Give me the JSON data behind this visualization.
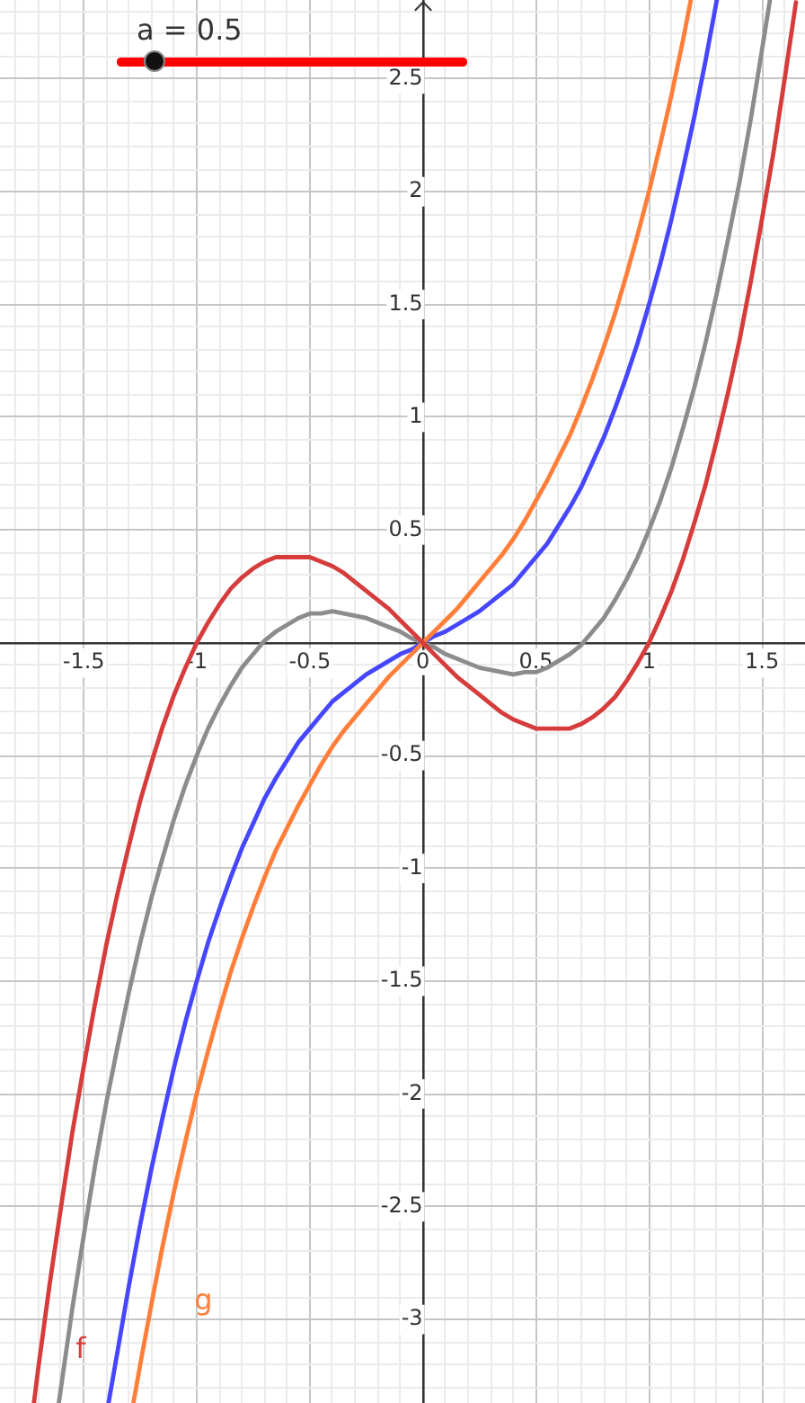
{
  "chart_data": {
    "type": "line",
    "annotations": [
      "a = 0.5"
    ],
    "xlim": [
      -1.87,
      1.69
    ],
    "ylim": [
      -3.37,
      2.85
    ],
    "xticks": [
      {
        "value": -1.8,
        "label": null
      },
      {
        "value": -1.7,
        "label": null
      },
      {
        "value": -1.6,
        "label": null
      },
      -1.5,
      {
        "value": -1.4,
        "label": null
      },
      {
        "value": -1.3,
        "label": null
      },
      {
        "value": -1.2,
        "label": null
      },
      {
        "value": -1.1,
        "label": null
      },
      -1,
      {
        "value": -0.9,
        "label": null
      },
      {
        "value": -0.8,
        "label": null
      },
      {
        "value": -0.7,
        "label": null
      },
      {
        "value": -0.6,
        "label": null
      },
      -0.5,
      {
        "value": -0.4,
        "label": null
      },
      {
        "value": -0.3,
        "label": null
      },
      {
        "value": -0.2,
        "label": null
      },
      {
        "value": -0.1,
        "label": null
      },
      0,
      {
        "value": 0.1,
        "label": null
      },
      {
        "value": 0.2,
        "label": null
      },
      {
        "value": 0.3,
        "label": null
      },
      {
        "value": 0.4,
        "label": null
      },
      0.5,
      {
        "value": 0.6,
        "label": null
      },
      {
        "value": 0.7,
        "label": null
      },
      {
        "value": 0.8,
        "label": null
      },
      {
        "value": 0.9,
        "label": null
      },
      1,
      {
        "value": 1.1,
        "label": null
      },
      {
        "value": 1.2,
        "label": null
      },
      {
        "value": 1.3,
        "label": null
      },
      {
        "value": 1.4,
        "label": null
      },
      1.5,
      {
        "value": 1.6,
        "label": null
      }
    ],
    "yticks": [
      {
        "value": -3.3,
        "label": null
      },
      {
        "value": -3.2,
        "label": null
      },
      {
        "value": -3.1,
        "label": null
      },
      -3,
      {
        "value": -2.9,
        "label": null
      },
      {
        "value": -2.8,
        "label": null
      },
      {
        "value": -2.7,
        "label": null
      },
      {
        "value": -2.6,
        "label": null
      },
      -2.5,
      {
        "value": -2.4,
        "label": null
      },
      {
        "value": -2.3,
        "label": null
      },
      {
        "value": -2.2,
        "label": null
      },
      {
        "value": -2.1,
        "label": null
      },
      -2,
      {
        "value": -1.9,
        "label": null
      },
      {
        "value": -1.8,
        "label": null
      },
      {
        "value": -1.7,
        "label": null
      },
      {
        "value": -1.6,
        "label": null
      },
      -1.5,
      {
        "value": -1.4,
        "label": null
      },
      {
        "value": -1.3,
        "label": null
      },
      {
        "value": -1.2,
        "label": null
      },
      {
        "value": -1.1,
        "label": null
      },
      -1,
      {
        "value": -0.9,
        "label": null
      },
      {
        "value": -0.8,
        "label": null
      },
      {
        "value": -0.7,
        "label": null
      },
      {
        "value": -0.6,
        "label": null
      },
      -0.5,
      {
        "value": -0.4,
        "label": null
      },
      {
        "value": -0.3,
        "label": null
      },
      {
        "value": -0.2,
        "label": null
      },
      {
        "value": -0.1,
        "label": null
      },
      {
        "value": 0,
        "label": null
      },
      {
        "value": 0.1,
        "label": null
      },
      {
        "value": 0.2,
        "label": null
      },
      {
        "value": 0.3,
        "label": null
      },
      {
        "value": 0.4,
        "label": null
      },
      0.5,
      {
        "value": 0.6,
        "label": null
      },
      {
        "value": 0.7,
        "label": null
      },
      {
        "value": 0.8,
        "label": null
      },
      {
        "value": 0.9,
        "label": null
      },
      1,
      {
        "value": 1.1,
        "label": null
      },
      {
        "value": 1.2,
        "label": null
      },
      {
        "value": 1.3,
        "label": null
      },
      {
        "value": 1.4,
        "label": null
      },
      1.5,
      {
        "value": 1.6,
        "label": null
      },
      {
        "value": 1.7,
        "label": null
      },
      {
        "value": 1.8,
        "label": null
      },
      {
        "value": 1.9,
        "label": null
      },
      2,
      {
        "value": 2.1,
        "label": null
      },
      {
        "value": 2.2,
        "label": null
      },
      {
        "value": 2.3,
        "label": null
      },
      {
        "value": 2.4,
        "label": null
      },
      2.5,
      {
        "value": 2.6,
        "label": null
      },
      {
        "value": 2.7,
        "label": null
      },
      {
        "value": 2.8,
        "label": null
      }
    ],
    "grid": true,
    "marker": "none",
    "line_style": "solid",
    "series": [
      {
        "name": "f",
        "color": "#d63c3c",
        "x": [
          -1.72,
          -1.7,
          -1.65,
          -1.6,
          -1.55,
          -1.5,
          -1.45,
          -1.4,
          -1.35,
          -1.3,
          -1.25,
          -1.2,
          -1.15,
          -1.1,
          -1.05,
          -1,
          -0.95,
          -0.9,
          -0.85,
          -0.8,
          -0.75,
          -0.7,
          -0.65,
          -0.6,
          -0.55,
          -0.5,
          -0.45,
          -0.4,
          -0.35,
          -0.3,
          -0.25,
          -0.2,
          -0.15,
          -0.1,
          -0.05,
          0,
          0.05,
          0.1,
          0.15,
          0.2,
          0.25,
          0.3,
          0.35,
          0.4,
          0.45,
          0.5,
          0.55,
          0.6,
          0.65,
          0.7,
          0.75,
          0.8,
          0.85,
          0.9,
          0.95,
          1,
          1.05,
          1.1,
          1.15,
          1.2,
          1.25,
          1.3,
          1.35,
          1.4,
          1.45,
          1.5,
          1.55,
          1.6,
          1.65
        ],
        "values": [
          -3.37,
          -3.21,
          -2.84,
          -2.5,
          -2.17,
          -1.88,
          -1.6,
          -1.34,
          -1.11,
          -0.9,
          -0.7,
          -0.53,
          -0.37,
          -0.23,
          -0.11,
          0,
          0.09,
          0.17,
          0.24,
          0.29,
          0.33,
          0.36,
          0.38,
          0.38,
          0.38,
          0.38,
          0.36,
          0.34,
          0.31,
          0.27,
          0.23,
          0.19,
          0.15,
          0.1,
          0.05,
          0,
          -0.05,
          -0.1,
          -0.15,
          -0.19,
          -0.23,
          -0.27,
          -0.31,
          -0.34,
          -0.36,
          -0.38,
          -0.38,
          -0.38,
          -0.38,
          -0.36,
          -0.33,
          -0.29,
          -0.24,
          -0.17,
          -0.09,
          0,
          0.11,
          0.23,
          0.37,
          0.53,
          0.7,
          0.9,
          1.11,
          1.34,
          1.6,
          1.88,
          2.17,
          2.5,
          2.84
        ]
      },
      {
        "name": "g",
        "color": "#ff7f3a",
        "x": [
          -1.28,
          -1.25,
          -1.2,
          -1.15,
          -1.1,
          -1.05,
          -1,
          -0.95,
          -0.9,
          -0.85,
          -0.8,
          -0.75,
          -0.7,
          -0.65,
          -0.6,
          -0.55,
          -0.5,
          -0.45,
          -0.4,
          -0.35,
          -0.3,
          -0.25,
          -0.2,
          -0.15,
          -0.1,
          -0.05,
          0,
          0.05,
          0.1,
          0.15,
          0.2,
          0.25,
          0.3,
          0.35,
          0.4,
          0.45,
          0.5,
          0.55,
          0.6,
          0.65,
          0.7,
          0.75,
          0.8,
          0.85,
          0.9,
          0.95,
          1,
          1.05,
          1.1,
          1.15,
          1.185
        ],
        "values": [
          -3.37,
          -3.2,
          -2.93,
          -2.67,
          -2.43,
          -2.21,
          -2,
          -1.81,
          -1.63,
          -1.46,
          -1.31,
          -1.17,
          -1.04,
          -0.92,
          -0.82,
          -0.72,
          -0.63,
          -0.54,
          -0.46,
          -0.39,
          -0.33,
          -0.27,
          -0.21,
          -0.15,
          -0.1,
          -0.05,
          0,
          0.05,
          0.1,
          0.15,
          0.21,
          0.27,
          0.33,
          0.39,
          0.46,
          0.54,
          0.63,
          0.72,
          0.82,
          0.92,
          1.04,
          1.17,
          1.31,
          1.46,
          1.63,
          1.81,
          2,
          2.21,
          2.43,
          2.67,
          2.85
        ]
      },
      {
        "color": "#4646ff",
        "x": [
          -1.39,
          -1.35,
          -1.3,
          -1.25,
          -1.2,
          -1.15,
          -1.1,
          -1.05,
          -1,
          -0.95,
          -0.9,
          -0.85,
          -0.8,
          -0.75,
          -0.7,
          -0.65,
          -0.6,
          -0.55,
          -0.5,
          -0.45,
          -0.4,
          -0.35,
          -0.3,
          -0.25,
          -0.2,
          -0.15,
          -0.1,
          -0.05,
          0,
          0.05,
          0.1,
          0.15,
          0.2,
          0.25,
          0.3,
          0.35,
          0.4,
          0.45,
          0.5,
          0.55,
          0.6,
          0.65,
          0.7,
          0.75,
          0.8,
          0.85,
          0.9,
          0.95,
          1,
          1.05,
          1.1,
          1.15,
          1.2,
          1.25,
          1.3
        ],
        "values": [
          -3.37,
          -3.14,
          -2.85,
          -2.58,
          -2.33,
          -2.1,
          -1.88,
          -1.68,
          -1.5,
          -1.33,
          -1.18,
          -1.04,
          -0.91,
          -0.8,
          -0.69,
          -0.6,
          -0.52,
          -0.44,
          -0.38,
          -0.32,
          -0.26,
          -0.22,
          -0.18,
          -0.14,
          -0.11,
          -0.08,
          -0.05,
          -0.03,
          0,
          0.03,
          0.05,
          0.08,
          0.11,
          0.14,
          0.18,
          0.22,
          0.26,
          0.32,
          0.38,
          0.44,
          0.52,
          0.6,
          0.69,
          0.8,
          0.91,
          1.04,
          1.18,
          1.33,
          1.5,
          1.68,
          1.88,
          2.1,
          2.33,
          2.58,
          2.85
        ]
      },
      {
        "color": "#8c8c8c",
        "x": [
          -1.61,
          -1.6,
          -1.55,
          -1.5,
          -1.45,
          -1.4,
          -1.35,
          -1.3,
          -1.25,
          -1.2,
          -1.15,
          -1.1,
          -1.05,
          -1,
          -0.95,
          -0.9,
          -0.85,
          -0.8,
          -0.75,
          -0.7,
          -0.65,
          -0.6,
          -0.55,
          -0.5,
          -0.45,
          -0.4,
          -0.35,
          -0.3,
          -0.25,
          -0.2,
          -0.15,
          -0.1,
          -0.05,
          0,
          0.05,
          0.1,
          0.15,
          0.2,
          0.25,
          0.3,
          0.35,
          0.4,
          0.45,
          0.5,
          0.55,
          0.6,
          0.65,
          0.7,
          0.75,
          0.8,
          0.85,
          0.9,
          0.95,
          1,
          1.05,
          1.1,
          1.15,
          1.2,
          1.25,
          1.3,
          1.35,
          1.4,
          1.45,
          1.5,
          1.535
        ],
        "values": [
          -3.37,
          -3.3,
          -2.95,
          -2.63,
          -2.32,
          -2.04,
          -1.79,
          -1.55,
          -1.33,
          -1.13,
          -0.95,
          -0.78,
          -0.63,
          -0.5,
          -0.38,
          -0.28,
          -0.19,
          -0.11,
          -0.05,
          0.01,
          0.05,
          0.08,
          0.11,
          0.13,
          0.13,
          0.14,
          0.13,
          0.12,
          0.11,
          0.09,
          0.07,
          0.05,
          0.02,
          0,
          -0.02,
          -0.05,
          -0.07,
          -0.09,
          -0.11,
          -0.12,
          -0.13,
          -0.14,
          -0.13,
          -0.13,
          -0.11,
          -0.08,
          -0.05,
          -0.01,
          0.05,
          0.11,
          0.19,
          0.28,
          0.38,
          0.5,
          0.63,
          0.78,
          0.95,
          1.13,
          1.33,
          1.55,
          1.79,
          2.04,
          2.32,
          2.63,
          2.85
        ]
      }
    ]
  }
}
